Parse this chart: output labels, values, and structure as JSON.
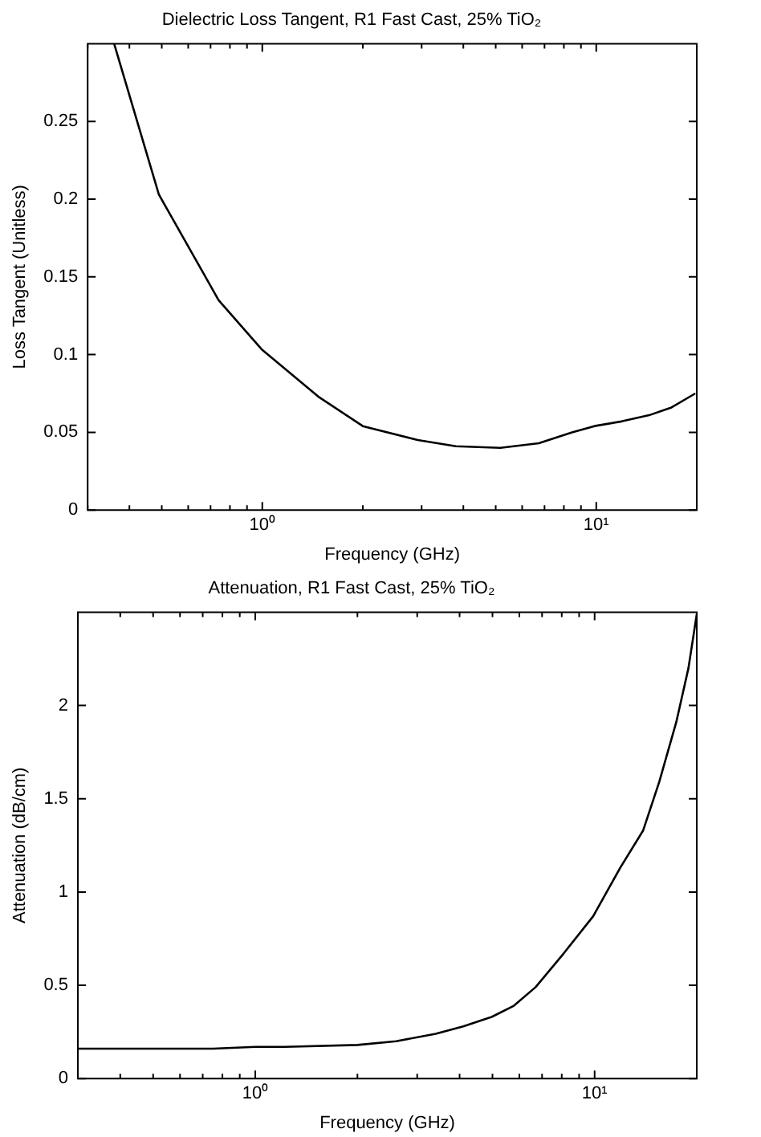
{
  "chart_data": [
    {
      "type": "line",
      "title": "Dielectric Loss Tangent, R1 Fast Cast, 25% TiO₂",
      "xlabel": "Frequency (GHz)",
      "ylabel": "Loss Tangent (Unitless)",
      "log": "x",
      "grid": false,
      "legend": false,
      "marker": "none",
      "line_style": "solid",
      "x": [
        0.36,
        0.49,
        0.74,
        1,
        1.47,
        2,
        2.92,
        3.8,
        5.16,
        6.73,
        8.46,
        9.87,
        11.9,
        14.4,
        16.8,
        19.8
      ],
      "series": [
        {
          "color": "#000000",
          "values": [
            0.3,
            0.203,
            0.135,
            0.103,
            0.073,
            0.054,
            0.045,
            0.041,
            0.04,
            0.043,
            0.05,
            0.054,
            0.057,
            0.061,
            0.066,
            0.075
          ]
        }
      ],
      "xlim": [
        0.3,
        20
      ],
      "xticks": [
        {
          "value": 0.3,
          "label": null
        },
        {
          "value": 0.4,
          "label": null
        },
        {
          "value": 0.5,
          "label": null
        },
        {
          "value": 0.6,
          "label": null
        },
        {
          "value": 0.7,
          "label": null
        },
        {
          "value": 0.8,
          "label": null
        },
        {
          "value": 0.9,
          "label": null
        },
        {
          "value": 1,
          "label": "10⁰"
        },
        {
          "value": 2,
          "label": null
        },
        {
          "value": 3,
          "label": null
        },
        {
          "value": 4,
          "label": null
        },
        {
          "value": 5,
          "label": null
        },
        {
          "value": 6,
          "label": null
        },
        {
          "value": 7,
          "label": null
        },
        {
          "value": 8,
          "label": null
        },
        {
          "value": 9,
          "label": null
        },
        {
          "value": 10,
          "label": "10¹"
        },
        {
          "value": 20,
          "label": null
        }
      ],
      "ylim": [
        0,
        0.3
      ],
      "yticks": [
        0,
        0.05,
        0.1,
        0.15,
        0.2,
        0.25
      ]
    },
    {
      "type": "line",
      "title": "Attenuation, R1 Fast Cast, 25% TiO₂",
      "xlabel": "Frequency (GHz)",
      "ylabel": "Attenuation (dB/cm)",
      "log": "x",
      "grid": false,
      "legend": false,
      "marker": "none",
      "line_style": "solid",
      "x": [
        0.3,
        0.75,
        1,
        1.22,
        2,
        2.6,
        3.4,
        4.1,
        4.97,
        5.78,
        6.7,
        8.1,
        9.9,
        11.9,
        13.9,
        15.5,
        17.4,
        18.9,
        20
      ],
      "series": [
        {
          "color": "#000000",
          "values": [
            0.16,
            0.16,
            0.17,
            0.17,
            0.18,
            0.2,
            0.24,
            0.28,
            0.33,
            0.39,
            0.49,
            0.67,
            0.87,
            1.13,
            1.33,
            1.59,
            1.91,
            2.2,
            2.49
          ]
        }
      ],
      "xlim": [
        0.3,
        20
      ],
      "xticks": [
        {
          "value": 0.3,
          "label": null
        },
        {
          "value": 0.4,
          "label": null
        },
        {
          "value": 0.5,
          "label": null
        },
        {
          "value": 0.6,
          "label": null
        },
        {
          "value": 0.7,
          "label": null
        },
        {
          "value": 0.8,
          "label": null
        },
        {
          "value": 0.9,
          "label": null
        },
        {
          "value": 1,
          "label": "10⁰"
        },
        {
          "value": 2,
          "label": null
        },
        {
          "value": 3,
          "label": null
        },
        {
          "value": 4,
          "label": null
        },
        {
          "value": 5,
          "label": null
        },
        {
          "value": 6,
          "label": null
        },
        {
          "value": 7,
          "label": null
        },
        {
          "value": 8,
          "label": null
        },
        {
          "value": 9,
          "label": null
        },
        {
          "value": 10,
          "label": "10¹"
        },
        {
          "value": 20,
          "label": null
        }
      ],
      "ylim": [
        0,
        2.5
      ],
      "yticks": [
        0,
        0.5,
        1,
        1.5,
        2
      ]
    }
  ]
}
